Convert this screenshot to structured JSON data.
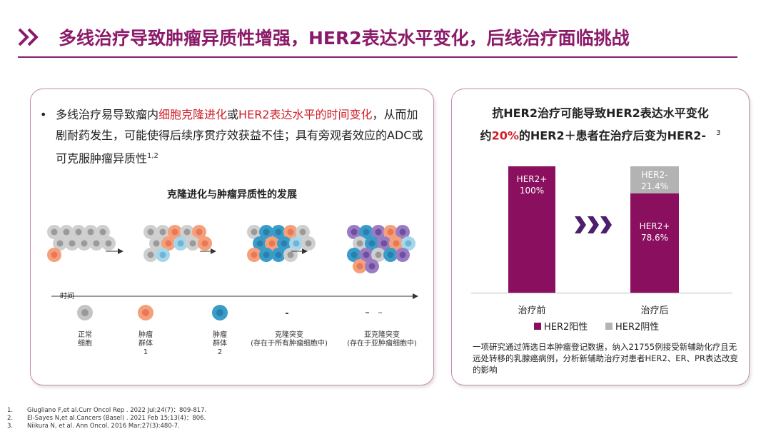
{
  "title": "多线治疗导致肿瘤异质性增强，HER2表达水平变化，后线治疗面临挑战",
  "left": {
    "bullet": {
      "t1": "多线治疗易导致瘤内",
      "h1": "细胞克隆进化",
      "t2": "或",
      "h2": "HER2表达水平的时间变化",
      "t3": "，从而加剧耐药发生，可能使得后续序贯疗效获益不佳；具有旁观者效应的ADC或可克服肿瘤异质性",
      "sup": "1,2"
    },
    "illustration_title": "克隆进化与肿瘤异质性的发展",
    "time_label": "时间",
    "legend": [
      {
        "l1": "正常",
        "l2": "细胞",
        "l3": ""
      },
      {
        "l1": "肿瘤",
        "l2": "群体",
        "l3": "1"
      },
      {
        "l1": "肿瘤",
        "l2": "群体",
        "l3": "2"
      },
      {
        "l1": "克隆突变",
        "l2": "(存在于所有肿瘤细胞中)",
        "l3": ""
      },
      {
        "l1": "亚克隆突变",
        "l2": "(存在于亚肿瘤细胞中)",
        "l3": ""
      }
    ]
  },
  "right": {
    "title1": "抗HER2治疗可能导致HER2表达水平变化",
    "title2a": "约",
    "title2b": "20%",
    "title2c": "的HER2＋患者在治疗后变为HER2-",
    "title_sup": "3",
    "note": "一项研究通过筛选日本肿瘤登记数据，纳入21755例接受新辅助化疗且无远处转移的乳腺癌病例，分析新辅助治疗对患者HER2、ER、PR表达改变的影响"
  },
  "chart_data": {
    "type": "bar",
    "stacked": true,
    "categories": [
      "治疗前",
      "治疗后"
    ],
    "series": [
      {
        "name": "HER2阳性",
        "values": [
          100,
          78.6
        ],
        "labels": [
          "HER2+",
          "HER2+"
        ],
        "color": "#8a0f5e"
      },
      {
        "name": "HER2阴性",
        "values": [
          0,
          21.4
        ],
        "labels": [
          "",
          "HER2-"
        ],
        "color": "#b3b3b3"
      }
    ],
    "ylim": [
      0,
      100
    ]
  },
  "refs": [
    {
      "n": "1.",
      "t": "Giugliano F,et al.Curr Oncol Rep . 2022  Jul;24(7)：809-817."
    },
    {
      "n": "2.",
      "t": "El-Sayes N,et al.Cancers (Basel) . 2021  Feb 15;13(4)：806."
    },
    {
      "n": "3.",
      "t": "Niikura N, et al. Ann Oncol. 2016 Mar;27(3):480-7."
    }
  ],
  "colors": {
    "accent": "#8c1a6a",
    "highlight": "#d0202a"
  }
}
